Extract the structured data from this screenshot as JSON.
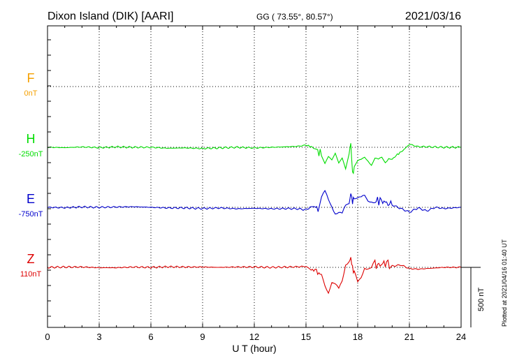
{
  "header": {
    "station": "Dixon Island (DIK)  [AARI]",
    "coords": "GG ( 73.55°,  80.57°)",
    "date": "2021/03/16"
  },
  "plotted_note": "Plotted at 2021/04/16 01:40 UT",
  "scale_label": "500 nT",
  "colors": {
    "F": "#f5a000",
    "H": "#00dd00",
    "E": "#0000cc",
    "Z": "#dd0000",
    "axis": "#000000"
  },
  "chart_data": {
    "type": "line",
    "xlabel": "U T (hour)",
    "xlim": [
      0,
      24
    ],
    "xticks": [
      0,
      3,
      6,
      9,
      12,
      15,
      18,
      21,
      24
    ],
    "series": [
      {
        "name": "F",
        "baseline_label": "0nT",
        "color": "#f5a000",
        "x": [],
        "y": []
      },
      {
        "name": "H",
        "baseline_label": "-250nT",
        "color": "#00dd00",
        "x": [
          0,
          1,
          2,
          3,
          4,
          5,
          6,
          7,
          8,
          9,
          10,
          11,
          12,
          13,
          14,
          14.5,
          15,
          15.3,
          15.6,
          15.9,
          16.1,
          16.3,
          16.5,
          16.7,
          16.9,
          17.1,
          17.3,
          17.5,
          17.6,
          17.7,
          17.8,
          18,
          18.2,
          18.4,
          18.6,
          18.8,
          19,
          19.2,
          19.4,
          19.6,
          19.8,
          20,
          20.3,
          20.6,
          21,
          21.5,
          22,
          23,
          24
        ],
        "y": [
          0,
          -3,
          3,
          -3,
          3,
          0,
          0,
          -8,
          -5,
          -10,
          -5,
          0,
          -5,
          0,
          5,
          8,
          18,
          5,
          -20,
          -60,
          -130,
          -80,
          -110,
          -50,
          -130,
          -90,
          -180,
          -50,
          40,
          -200,
          -160,
          -120,
          -110,
          -80,
          -100,
          -140,
          -100,
          -120,
          -90,
          -110,
          -70,
          -100,
          -60,
          -30,
          25,
          5,
          5,
          0,
          0
        ]
      },
      {
        "name": "E",
        "baseline_label": "-750nT",
        "color": "#0000cc",
        "x": [
          0,
          1,
          2,
          3,
          4,
          5,
          6,
          7,
          8,
          9,
          10,
          11,
          12,
          13,
          14,
          14.5,
          15,
          15.4,
          15.7,
          15.9,
          16.1,
          16.3,
          16.5,
          16.7,
          16.9,
          17.1,
          17.3,
          17.5,
          17.6,
          17.7,
          17.8,
          18,
          18.2,
          18.4,
          18.6,
          18.8,
          19,
          19.3,
          19.6,
          20,
          20.5,
          21,
          21.5,
          22,
          22.5,
          23,
          24
        ],
        "y": [
          0,
          -3,
          3,
          0,
          3,
          5,
          0,
          -5,
          -5,
          -10,
          -5,
          -12,
          -8,
          -12,
          -10,
          -12,
          -20,
          10,
          -10,
          70,
          100,
          50,
          30,
          -20,
          -40,
          -80,
          -10,
          40,
          140,
          60,
          100,
          80,
          60,
          80,
          60,
          70,
          50,
          60,
          40,
          20,
          -10,
          -40,
          -5,
          -30,
          0,
          -10,
          0
        ]
      },
      {
        "name": "Z",
        "baseline_label": "110nT",
        "color": "#dd0000",
        "x": [
          0,
          1,
          2,
          3,
          4,
          5,
          6,
          7,
          8,
          9,
          10,
          11,
          12,
          13,
          14,
          14.5,
          15,
          15.3,
          15.6,
          15.9,
          16.1,
          16.3,
          16.5,
          16.7,
          16.9,
          17.1,
          17.3,
          17.5,
          17.6,
          17.7,
          17.8,
          18,
          18.2,
          18.4,
          18.6,
          18.8,
          19,
          19.3,
          19.6,
          20,
          20.5,
          21,
          21.5,
          22,
          23,
          24
        ],
        "y": [
          0,
          3,
          3,
          -3,
          -3,
          3,
          0,
          5,
          3,
          3,
          0,
          3,
          3,
          0,
          3,
          5,
          8,
          -20,
          -30,
          -70,
          -140,
          -190,
          -120,
          -160,
          -200,
          -110,
          50,
          70,
          90,
          0,
          -60,
          -150,
          -80,
          30,
          10,
          -20,
          20,
          20,
          40,
          10,
          20,
          -10,
          -15,
          -10,
          0,
          0
        ]
      }
    ]
  }
}
